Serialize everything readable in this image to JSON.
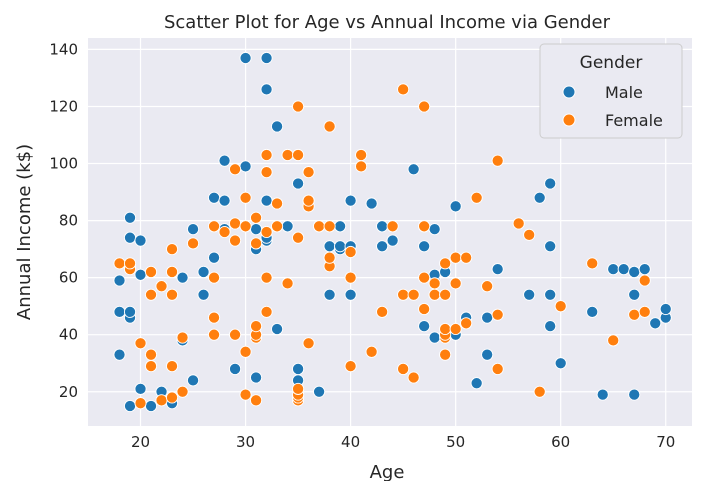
{
  "chart_data": {
    "type": "scatter",
    "title": "Scatter Plot for Age vs Annual Income via Gender",
    "xlabel": "Age",
    "ylabel": "Annual Income (k$)",
    "xlim": [
      15,
      72.5
    ],
    "ylim": [
      8,
      144
    ],
    "xticks": [
      20,
      30,
      40,
      50,
      60,
      70
    ],
    "yticks": [
      20,
      40,
      60,
      80,
      100,
      120,
      140
    ],
    "grid": true,
    "background": "#eaeaf2",
    "legend": {
      "title": "Gender",
      "placement": "top-right"
    },
    "series": [
      {
        "name": "Male",
        "color": "#1f77b4",
        "points": [
          [
            18,
            33
          ],
          [
            18,
            48
          ],
          [
            18,
            59
          ],
          [
            19,
            15
          ],
          [
            19,
            46
          ],
          [
            19,
            48
          ],
          [
            19,
            64
          ],
          [
            19,
            74
          ],
          [
            19,
            81
          ],
          [
            20,
            21
          ],
          [
            20,
            61
          ],
          [
            20,
            73
          ],
          [
            21,
            15
          ],
          [
            22,
            20
          ],
          [
            23,
            16
          ],
          [
            24,
            38
          ],
          [
            24,
            60
          ],
          [
            25,
            24
          ],
          [
            25,
            77
          ],
          [
            26,
            54
          ],
          [
            26,
            62
          ],
          [
            27,
            67
          ],
          [
            27,
            88
          ],
          [
            28,
            77
          ],
          [
            28,
            87
          ],
          [
            28,
            101
          ],
          [
            29,
            28
          ],
          [
            30,
            99
          ],
          [
            30,
            137
          ],
          [
            31,
            25
          ],
          [
            31,
            70
          ],
          [
            31,
            77
          ],
          [
            32,
            73
          ],
          [
            32,
            74
          ],
          [
            32,
            87
          ],
          [
            32,
            126
          ],
          [
            32,
            137
          ],
          [
            33,
            42
          ],
          [
            33,
            113
          ],
          [
            34,
            78
          ],
          [
            35,
            24
          ],
          [
            35,
            28
          ],
          [
            35,
            93
          ],
          [
            36,
            87
          ],
          [
            37,
            20
          ],
          [
            37,
            78
          ],
          [
            38,
            54
          ],
          [
            38,
            71
          ],
          [
            39,
            70
          ],
          [
            39,
            71
          ],
          [
            39,
            78
          ],
          [
            40,
            54
          ],
          [
            40,
            71
          ],
          [
            40,
            87
          ],
          [
            42,
            86
          ],
          [
            43,
            71
          ],
          [
            43,
            78
          ],
          [
            44,
            73
          ],
          [
            46,
            98
          ],
          [
            47,
            43
          ],
          [
            47,
            71
          ],
          [
            47,
            78
          ],
          [
            48,
            39
          ],
          [
            48,
            54
          ],
          [
            48,
            60
          ],
          [
            48,
            61
          ],
          [
            48,
            77
          ],
          [
            49,
            62
          ],
          [
            50,
            40
          ],
          [
            50,
            85
          ],
          [
            51,
            46
          ],
          [
            52,
            23
          ],
          [
            53,
            33
          ],
          [
            53,
            46
          ],
          [
            54,
            63
          ],
          [
            57,
            54
          ],
          [
            58,
            88
          ],
          [
            59,
            43
          ],
          [
            59,
            54
          ],
          [
            59,
            71
          ],
          [
            59,
            93
          ],
          [
            60,
            30
          ],
          [
            63,
            48
          ],
          [
            64,
            19
          ],
          [
            65,
            63
          ],
          [
            66,
            63
          ],
          [
            67,
            19
          ],
          [
            67,
            54
          ],
          [
            67,
            62
          ],
          [
            68,
            63
          ],
          [
            69,
            44
          ],
          [
            70,
            46
          ],
          [
            70,
            49
          ]
        ]
      },
      {
        "name": "Female",
        "color": "#ff7f0e",
        "points": [
          [
            18,
            65
          ],
          [
            19,
            63
          ],
          [
            19,
            65
          ],
          [
            20,
            16
          ],
          [
            20,
            37
          ],
          [
            21,
            29
          ],
          [
            21,
            33
          ],
          [
            21,
            54
          ],
          [
            21,
            62
          ],
          [
            22,
            17
          ],
          [
            22,
            57
          ],
          [
            23,
            18
          ],
          [
            23,
            29
          ],
          [
            23,
            54
          ],
          [
            23,
            62
          ],
          [
            23,
            70
          ],
          [
            24,
            20
          ],
          [
            24,
            39
          ],
          [
            25,
            72
          ],
          [
            27,
            40
          ],
          [
            27,
            46
          ],
          [
            27,
            60
          ],
          [
            27,
            78
          ],
          [
            28,
            76
          ],
          [
            29,
            40
          ],
          [
            29,
            73
          ],
          [
            29,
            79
          ],
          [
            29,
            98
          ],
          [
            30,
            19
          ],
          [
            30,
            34
          ],
          [
            30,
            78
          ],
          [
            30,
            88
          ],
          [
            31,
            17
          ],
          [
            31,
            39
          ],
          [
            31,
            40
          ],
          [
            31,
            43
          ],
          [
            31,
            72
          ],
          [
            31,
            81
          ],
          [
            32,
            48
          ],
          [
            32,
            60
          ],
          [
            32,
            76
          ],
          [
            32,
            97
          ],
          [
            32,
            103
          ],
          [
            33,
            78
          ],
          [
            33,
            86
          ],
          [
            34,
            58
          ],
          [
            34,
            103
          ],
          [
            35,
            17
          ],
          [
            35,
            18
          ],
          [
            35,
            19
          ],
          [
            35,
            21
          ],
          [
            35,
            74
          ],
          [
            35,
            103
          ],
          [
            35,
            120
          ],
          [
            36,
            37
          ],
          [
            36,
            85
          ],
          [
            36,
            87
          ],
          [
            36,
            97
          ],
          [
            37,
            78
          ],
          [
            38,
            64
          ],
          [
            38,
            67
          ],
          [
            38,
            78
          ],
          [
            38,
            113
          ],
          [
            40,
            29
          ],
          [
            40,
            60
          ],
          [
            40,
            69
          ],
          [
            41,
            99
          ],
          [
            41,
            103
          ],
          [
            42,
            34
          ],
          [
            43,
            48
          ],
          [
            44,
            78
          ],
          [
            45,
            28
          ],
          [
            45,
            54
          ],
          [
            45,
            126
          ],
          [
            46,
            25
          ],
          [
            46,
            54
          ],
          [
            47,
            49
          ],
          [
            47,
            60
          ],
          [
            47,
            78
          ],
          [
            47,
            120
          ],
          [
            48,
            54
          ],
          [
            48,
            58
          ],
          [
            49,
            33
          ],
          [
            49,
            39
          ],
          [
            49,
            40
          ],
          [
            49,
            42
          ],
          [
            49,
            54
          ],
          [
            49,
            65
          ],
          [
            50,
            42
          ],
          [
            50,
            58
          ],
          [
            50,
            67
          ],
          [
            51,
            44
          ],
          [
            51,
            67
          ],
          [
            52,
            88
          ],
          [
            53,
            57
          ],
          [
            54,
            28
          ],
          [
            54,
            47
          ],
          [
            54,
            101
          ],
          [
            56,
            79
          ],
          [
            57,
            75
          ],
          [
            58,
            20
          ],
          [
            60,
            50
          ],
          [
            63,
            65
          ],
          [
            65,
            38
          ],
          [
            67,
            47
          ],
          [
            68,
            48
          ],
          [
            68,
            59
          ]
        ]
      }
    ]
  }
}
